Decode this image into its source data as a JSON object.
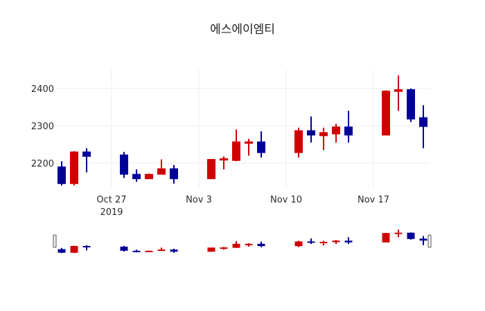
{
  "chart_data": {
    "type": "candlestick",
    "title": "에스에이엠티",
    "xlabel": "",
    "ylabel": "",
    "ylim": [
      2125,
      2455
    ],
    "yticks": [
      2200,
      2300,
      2400
    ],
    "xticks": [
      {
        "date": "2019-10-27",
        "label": "Oct 27",
        "sublabel": "2019"
      },
      {
        "date": "2019-11-03",
        "label": "Nov 3",
        "sublabel": ""
      },
      {
        "date": "2019-11-10",
        "label": "Nov 10",
        "sublabel": ""
      },
      {
        "date": "2019-11-17",
        "label": "Nov 17",
        "sublabel": ""
      }
    ],
    "xrange": [
      "2019-10-22T12:00",
      "2019-11-21T12:00"
    ],
    "grid": true,
    "legend": false,
    "rangeslider": true,
    "colors": {
      "increasing": "#d10000",
      "decreasing": "#000099"
    },
    "series": [
      {
        "name": "에스에이엠티",
        "x": [
          "2019-10-23",
          "2019-10-24",
          "2019-10-25",
          "2019-10-28",
          "2019-10-29",
          "2019-10-30",
          "2019-10-31",
          "2019-11-01",
          "2019-11-04",
          "2019-11-05",
          "2019-11-06",
          "2019-11-07",
          "2019-11-08",
          "2019-11-11",
          "2019-11-12",
          "2019-11-13",
          "2019-11-14",
          "2019-11-15",
          "2019-11-18",
          "2019-11-19",
          "2019-11-20",
          "2019-11-21"
        ],
        "open": [
          2190,
          2145,
          2230,
          2222,
          2170,
          2158,
          2170,
          2185,
          2158,
          2208,
          2207,
          2253,
          2257,
          2228,
          2287,
          2273,
          2278,
          2297,
          2275,
          2392,
          2397,
          2322
        ],
        "high": [
          2205,
          2232,
          2240,
          2230,
          2183,
          2172,
          2210,
          2195,
          2210,
          2218,
          2290,
          2265,
          2285,
          2295,
          2325,
          2295,
          2305,
          2340,
          2395,
          2435,
          2400,
          2355
        ],
        "low": [
          2140,
          2140,
          2175,
          2160,
          2150,
          2158,
          2170,
          2145,
          2158,
          2183,
          2205,
          2220,
          2215,
          2215,
          2255,
          2235,
          2255,
          2255,
          2275,
          2340,
          2310,
          2240
        ],
        "close": [
          2145,
          2230,
          2218,
          2170,
          2158,
          2170,
          2185,
          2158,
          2210,
          2212,
          2257,
          2257,
          2228,
          2287,
          2275,
          2282,
          2297,
          2275,
          2393,
          2397,
          2318,
          2298
        ]
      }
    ]
  }
}
